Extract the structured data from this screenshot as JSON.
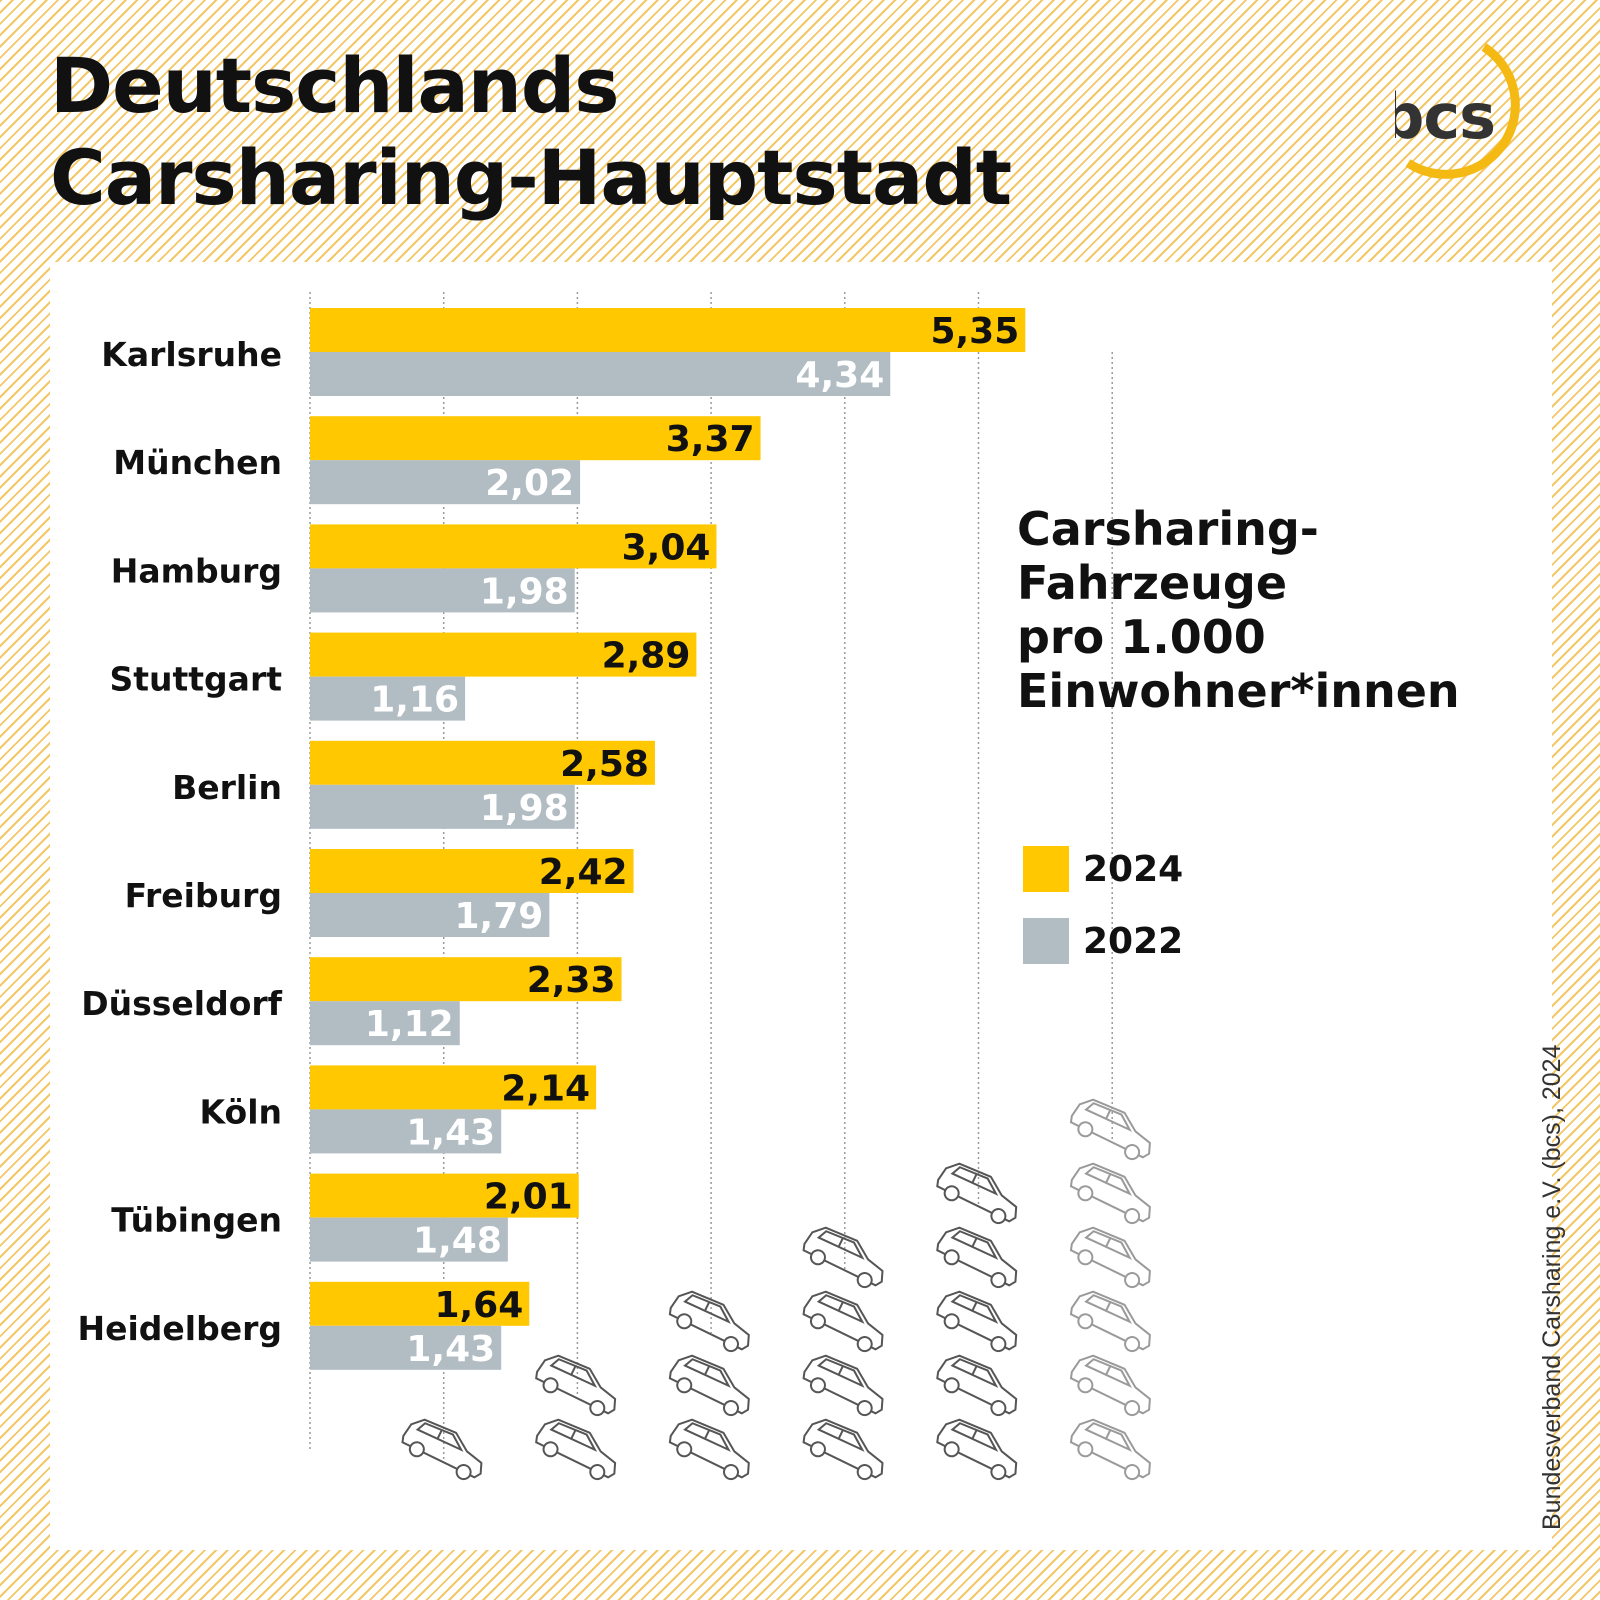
{
  "title": {
    "line1": "Deutschlands",
    "line2": "Carsharing-Hauptstadt"
  },
  "logo": {
    "text": "bcs",
    "icon": "bcs-logo-arc",
    "arc_color": "#f5b914",
    "text_color": "#333333"
  },
  "subtitle": {
    "line1": "Carsharing-",
    "line2": "Fahrzeuge",
    "line3": "pro 1.000",
    "line4": "Einwohner*innen"
  },
  "source": "Bundesverband Carsharing e.V. (bcs), 2024",
  "colors": {
    "series_2024": "#ffc800",
    "series_2022": "#b1bcc3",
    "label_2022": "#ffffff",
    "label_2024": "#111111",
    "grid": "#9a9a9a",
    "car_icon": "#555555",
    "stripe": "#f3c766"
  },
  "car_columns": [
    1,
    2,
    3,
    4,
    5,
    6
  ],
  "chart_data": {
    "type": "bar",
    "orientation": "horizontal",
    "categories": [
      "Karlsruhe",
      "München",
      "Hamburg",
      "Stuttgart",
      "Berlin",
      "Freiburg",
      "Düsseldorf",
      "Köln",
      "Tübingen",
      "Heidelberg"
    ],
    "series": [
      {
        "name": "2024",
        "values": [
          5.35,
          3.37,
          3.04,
          2.89,
          2.58,
          2.42,
          2.33,
          2.14,
          2.01,
          1.64
        ],
        "labels": [
          "5,35",
          "3,37",
          "3,04",
          "2,89",
          "2,58",
          "2,42",
          "2,33",
          "2,14",
          "2,01",
          "1,64"
        ]
      },
      {
        "name": "2022",
        "values": [
          4.34,
          2.02,
          1.98,
          1.16,
          1.98,
          1.79,
          1.12,
          1.43,
          1.48,
          1.43
        ],
        "labels": [
          "4,34",
          "2,02",
          "1,98",
          "1,16",
          "1,98",
          "1,79",
          "1,12",
          "1,43",
          "1,48",
          "1,43"
        ]
      }
    ],
    "xlim": [
      0,
      6
    ],
    "grid_x": [
      1,
      2,
      3,
      4,
      5,
      6
    ],
    "legend": "right",
    "axis_ticks": false
  }
}
